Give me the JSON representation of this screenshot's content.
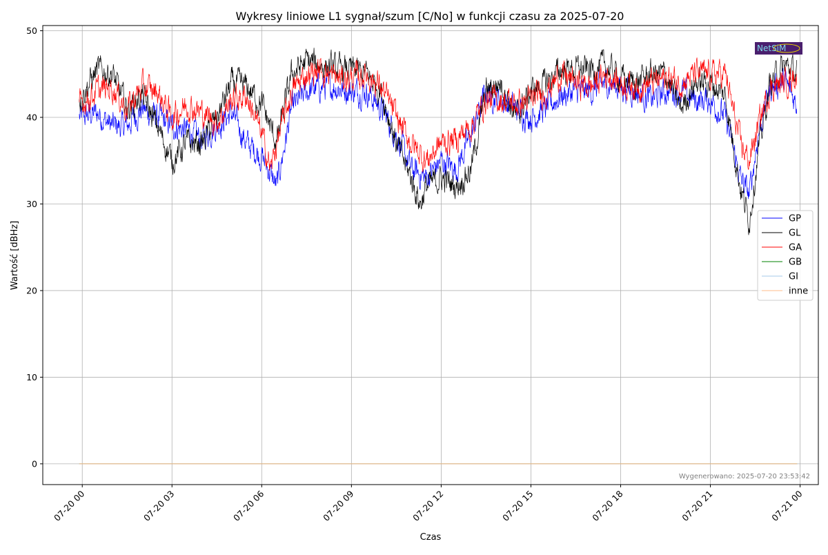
{
  "chart_data": {
    "type": "line",
    "title": "Wykresy liniowe L1 sygnał/szum [C/No] w funkcji czasu za 2025-07-20",
    "xlabel": "Czas",
    "ylabel": "Wartość [dBHz]",
    "x_unit": "hours since 2025-07-20 00:00",
    "xlim": [
      -1.32,
      24.61
    ],
    "ylim": [
      -2.4,
      50.6
    ],
    "grid": true,
    "x_ticks": [
      {
        "value": 0,
        "label": "07-20 00"
      },
      {
        "value": 3,
        "label": "07-20 03"
      },
      {
        "value": 6,
        "label": "07-20 06"
      },
      {
        "value": 9,
        "label": "07-20 09"
      },
      {
        "value": 12,
        "label": "07-20 12"
      },
      {
        "value": 15,
        "label": "07-20 15"
      },
      {
        "value": 18,
        "label": "07-20 18"
      },
      {
        "value": 21,
        "label": "07-20 21"
      },
      {
        "value": 24,
        "label": "07-21 00"
      }
    ],
    "y_ticks": [
      {
        "value": 0,
        "label": "0"
      },
      {
        "value": 10,
        "label": "10"
      },
      {
        "value": 20,
        "label": "20"
      },
      {
        "value": 30,
        "label": "30"
      },
      {
        "value": 40,
        "label": "40"
      },
      {
        "value": 50,
        "label": "50"
      }
    ],
    "legend_position": "center-right",
    "series": [
      {
        "name": "GP",
        "color": "#0000ff",
        "x": [
          -0.1,
          0.5,
          1,
          1.5,
          2,
          2.5,
          3,
          3.5,
          4,
          4.5,
          5,
          5.5,
          6,
          6.5,
          7,
          7.5,
          8,
          8.5,
          9,
          9.5,
          10,
          10.5,
          11,
          11.5,
          12,
          12.5,
          13,
          13.5,
          14,
          14.5,
          15,
          15.5,
          16,
          16.5,
          17,
          17.5,
          18,
          18.5,
          19,
          19.5,
          20,
          20.5,
          21,
          21.5,
          22,
          22.3,
          22.6,
          23,
          23.5,
          23.9
        ],
        "y": [
          40,
          40.5,
          39,
          39,
          41,
          40,
          39,
          38.5,
          37.5,
          39,
          40.5,
          37,
          35.5,
          32,
          41,
          43,
          43.5,
          43.5,
          43,
          43,
          41,
          38,
          34,
          33,
          35,
          34,
          38,
          43,
          42,
          41,
          40,
          41,
          42.5,
          43,
          43,
          44,
          43.5,
          43,
          42,
          43,
          43,
          42,
          42,
          40,
          33,
          31,
          38,
          43.5,
          44,
          41.5
        ]
      },
      {
        "name": "GL",
        "color": "#000000",
        "x": [
          -0.1,
          0.5,
          1,
          1.5,
          2,
          2.5,
          3,
          3.5,
          4,
          4.5,
          5,
          5.5,
          6,
          6.5,
          7,
          7.5,
          8,
          8.5,
          9,
          9.5,
          10,
          10.5,
          11,
          11.3,
          11.5,
          12,
          12.5,
          13,
          13.5,
          14,
          14.5,
          15,
          15.5,
          16,
          16.5,
          17,
          17.5,
          18,
          18.5,
          19,
          19.5,
          20,
          20.5,
          21,
          21.5,
          22,
          22.3,
          22.6,
          23,
          23.5,
          23.9
        ],
        "y": [
          42,
          45.5,
          45,
          41,
          42.5,
          39,
          35,
          37,
          37,
          40,
          44,
          43.5,
          41.5,
          37,
          45,
          46.5,
          46,
          45.5,
          45.5,
          45,
          43,
          37,
          33,
          30,
          32,
          33,
          32,
          34,
          43,
          44,
          40,
          43,
          44,
          45.5,
          45.5,
          45.5,
          46,
          44.5,
          44,
          45,
          45,
          41,
          44,
          44,
          42.5,
          32,
          28,
          36,
          44,
          46,
          45
        ]
      },
      {
        "name": "GA",
        "color": "#ff0000",
        "x": [
          -0.1,
          0.5,
          1,
          1.5,
          2,
          2.5,
          3,
          3.5,
          4,
          4.5,
          5,
          5.5,
          6,
          6.3,
          6.5,
          7,
          7.5,
          8,
          8.5,
          9,
          9.5,
          10,
          10.5,
          11,
          11.5,
          12,
          12.5,
          13,
          13.5,
          14,
          14.5,
          15,
          15.5,
          16,
          16.5,
          17,
          17.5,
          18,
          18.5,
          19,
          19.5,
          20,
          20.5,
          21,
          21.5,
          22,
          22.3,
          22.6,
          23,
          23.5,
          23.9
        ],
        "y": [
          41.5,
          43,
          43.5,
          41,
          43.5,
          43,
          40,
          41.5,
          40.5,
          39.5,
          42,
          42.5,
          38,
          34,
          37,
          43,
          45,
          45.5,
          44.5,
          44.5,
          45,
          43.5,
          40,
          37,
          35,
          37,
          37.5,
          39,
          42,
          42,
          41.5,
          42,
          43,
          45,
          44,
          43.5,
          45,
          44,
          43.5,
          44,
          44.5,
          44,
          45,
          45,
          45,
          37,
          35,
          39,
          43.5,
          44,
          45
        ]
      },
      {
        "name": "GB",
        "color": "#008000",
        "x": [
          -0.1,
          23.9
        ],
        "y": [
          0,
          0
        ]
      },
      {
        "name": "GI",
        "color": "#a6c8ea",
        "x": [
          -0.1,
          23.9
        ],
        "y": [
          0,
          0
        ]
      },
      {
        "name": "inne",
        "color": "#ffbb88",
        "x": [
          -0.1,
          23.9
        ],
        "y": [
          0,
          0
        ]
      }
    ],
    "annotations": {
      "generated": "Wygenerowano: 2025-07-20 23:53:42",
      "logo_text": "NetSiM"
    }
  }
}
